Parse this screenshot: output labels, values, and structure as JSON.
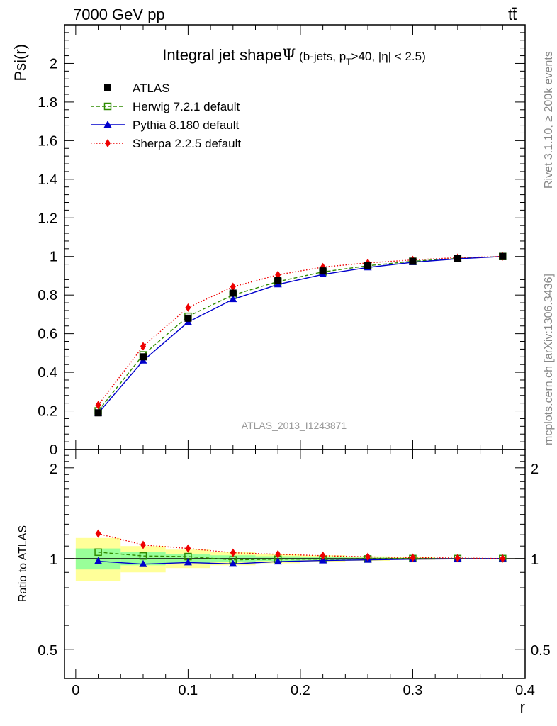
{
  "header": {
    "left": "7000 GeV pp",
    "right": "tt̄"
  },
  "side_labels": {
    "rivet": "Rivet 3.1.10, ≥ 200k events",
    "mcplots": "mcplots.cern.ch [arXiv:1306.3436]"
  },
  "chart_data": [
    {
      "type": "line",
      "title_main": "Integral jet shape",
      "title_symbol": "Ψ",
      "title_sub_pre": "(b-jets, p",
      "title_sub_idx": "T",
      "title_sub_post": ">40, |η| < 2.5)",
      "ylabel": "Psi(r)",
      "watermark": "ATLAS_2013_I1243871",
      "xlim": [
        -0.01,
        0.4
      ],
      "ylim": [
        0,
        2.2
      ],
      "yticks": [
        0,
        0.2,
        0.4,
        0.6,
        0.8,
        1,
        1.2,
        1.4,
        1.6,
        1.8,
        2
      ],
      "ytick_labels": [
        "0",
        "0.2",
        "0.4",
        "0.6",
        "0.8",
        "1",
        "1.2",
        "1.4",
        "1.6",
        "1.8",
        "2"
      ],
      "legend_position": "top-left",
      "x": [
        0.02,
        0.06,
        0.1,
        0.14,
        0.18,
        0.22,
        0.26,
        0.3,
        0.34,
        0.38
      ],
      "series": [
        {
          "name": "ATLAS",
          "color": "#000000",
          "marker": "filled-square",
          "line": "none",
          "values": [
            0.19,
            0.48,
            0.68,
            0.81,
            0.875,
            0.925,
            0.955,
            0.975,
            0.99,
            1.0
          ]
        },
        {
          "name": "Herwig 7.2.1 default",
          "color": "#2e8b00",
          "marker": "open-square",
          "line": "dashed",
          "values": [
            0.2,
            0.49,
            0.69,
            0.8,
            0.87,
            0.92,
            0.952,
            0.975,
            0.99,
            1.0
          ]
        },
        {
          "name": "Pythia 8.180 default",
          "color": "#0000cc",
          "marker": "triangle",
          "line": "solid",
          "values": [
            0.188,
            0.46,
            0.66,
            0.778,
            0.855,
            0.907,
            0.943,
            0.97,
            0.988,
            1.0
          ]
        },
        {
          "name": "Sherpa 2.2.5 default",
          "color": "#ee0000",
          "marker": "diamond",
          "line": "dotted",
          "values": [
            0.23,
            0.535,
            0.735,
            0.843,
            0.905,
            0.945,
            0.967,
            0.982,
            0.994,
            1.0
          ]
        }
      ]
    },
    {
      "type": "line",
      "ylabel": "Ratio to ATLAS",
      "xlabel": "r",
      "xlim": [
        -0.01,
        0.4
      ],
      "xticks": [
        0,
        0.1,
        0.2,
        0.3,
        0.4
      ],
      "xtick_labels": [
        "0",
        "0.1",
        "0.2",
        "0.3",
        "0.4"
      ],
      "y_scale": "log",
      "ylim": [
        0.4,
        2.3
      ],
      "yticks": [
        0.5,
        1,
        2
      ],
      "ytick_labels": [
        "0.5",
        "1",
        "2"
      ],
      "bands": {
        "x_edges": [
          0.0,
          0.04,
          0.08,
          0.12,
          0.16,
          0.2,
          0.24,
          0.28,
          0.32,
          0.36,
          0.4
        ],
        "yellow": {
          "color": "#ffff99",
          "lo": [
            0.84,
            0.9,
            0.93,
            0.95,
            0.965,
            0.975,
            0.983,
            0.99,
            0.995,
            0.998
          ],
          "hi": [
            1.17,
            1.1,
            1.07,
            1.05,
            1.035,
            1.025,
            1.017,
            1.01,
            1.005,
            1.002
          ]
        },
        "green": {
          "color": "#99ff99",
          "lo": [
            0.92,
            0.95,
            0.965,
            0.975,
            0.982,
            0.988,
            0.992,
            0.995,
            0.997,
            0.999
          ],
          "hi": [
            1.08,
            1.05,
            1.035,
            1.025,
            1.018,
            1.012,
            1.008,
            1.005,
            1.003,
            1.001
          ]
        }
      },
      "x": [
        0.02,
        0.06,
        0.1,
        0.14,
        0.18,
        0.22,
        0.26,
        0.3,
        0.34,
        0.38
      ],
      "series": [
        {
          "name": "Herwig 7.2.1 default",
          "color": "#2e8b00",
          "marker": "open-square",
          "line": "dashed",
          "values": [
            1.05,
            1.02,
            1.015,
            0.99,
            0.995,
            0.995,
            0.997,
            1.0,
            1.0,
            1.0
          ]
        },
        {
          "name": "Pythia 8.180 default",
          "color": "#0000cc",
          "marker": "triangle",
          "line": "solid",
          "values": [
            0.98,
            0.958,
            0.97,
            0.96,
            0.977,
            0.985,
            0.99,
            0.995,
            0.998,
            1.0
          ]
        },
        {
          "name": "Sherpa 2.2.5 default",
          "color": "#ee0000",
          "marker": "diamond",
          "line": "dotted",
          "values": [
            1.21,
            1.11,
            1.08,
            1.045,
            1.033,
            1.022,
            1.013,
            1.007,
            1.004,
            1.0
          ]
        }
      ]
    }
  ]
}
